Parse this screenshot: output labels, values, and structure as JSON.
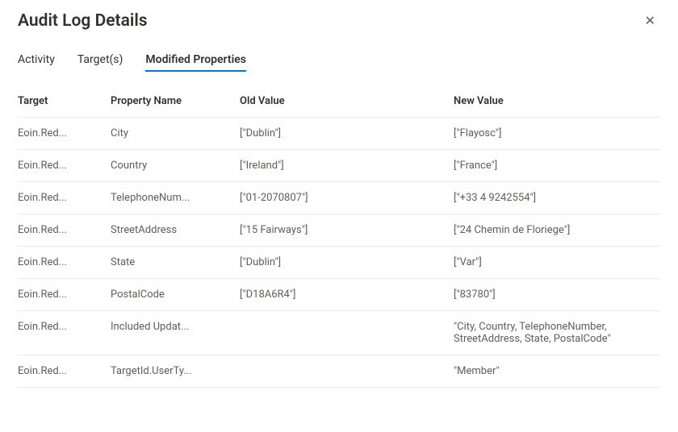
{
  "header": {
    "title": "Audit Log Details"
  },
  "tabs": [
    {
      "label": "Activity",
      "active": false
    },
    {
      "label": "Target(s)",
      "active": false
    },
    {
      "label": "Modified Properties",
      "active": true
    }
  ],
  "table": {
    "columns": {
      "target": "Target",
      "property": "Property Name",
      "old": "Old Value",
      "new": "New Value"
    },
    "rows": [
      {
        "target": "Eoin.Red...",
        "property": "City",
        "old": "[\"Dublin\"]",
        "new": "[\"Flayosc\"]"
      },
      {
        "target": "Eoin.Red...",
        "property": "Country",
        "old": "[\"Ireland\"]",
        "new": "[\"France\"]"
      },
      {
        "target": "Eoin.Red...",
        "property": "TelephoneNum...",
        "old": "[\"01-2070807\"]",
        "new": "[\"+33 4 9242554\"]"
      },
      {
        "target": "Eoin.Red...",
        "property": "StreetAddress",
        "old": "[\"15 Fairways\"]",
        "new": "[\"24 Chemin de Floriege\"]"
      },
      {
        "target": "Eoin.Red...",
        "property": "State",
        "old": "[\"Dublin\"]",
        "new": "[\"Var\"]"
      },
      {
        "target": "Eoin.Red...",
        "property": "PostalCode",
        "old": "[\"D18A6R4\"]",
        "new": "[\"83780\"]"
      },
      {
        "target": "Eoin.Red...",
        "property": "Included Updat...",
        "old": "",
        "new": "\"City, Country, TelephoneNumber, StreetAddress, State, PostalCode\"",
        "wrapNew": true
      },
      {
        "target": "Eoin.Red...",
        "property": "TargetId.UserTy...",
        "old": "",
        "new": "\"Member\""
      }
    ]
  }
}
